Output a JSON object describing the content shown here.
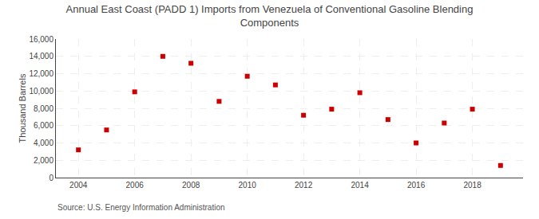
{
  "chart_data": {
    "type": "scatter",
    "title": "Annual East Coast (PADD 1) Imports from Venezuela of Conventional Gasoline Blending\nComponents",
    "ylabel": "Thousand Barrels",
    "annotations": [
      "Source: U.S. Energy Information Administration"
    ],
    "x": [
      2004,
      2005,
      2006,
      2007,
      2008,
      2009,
      2010,
      2011,
      2012,
      2013,
      2014,
      2015,
      2016,
      2017,
      2018,
      2019
    ],
    "values": [
      3200,
      5500,
      9900,
      14000,
      13200,
      8800,
      11700,
      10700,
      7200,
      7900,
      9800,
      6700,
      4000,
      6300,
      7900,
      1400
    ],
    "color": "#cc0000",
    "marker": "square",
    "xlim": [
      2003.2,
      2019.8
    ],
    "xticks": [
      2004,
      2006,
      2008,
      2010,
      2012,
      2014,
      2016,
      2018
    ],
    "ylim": [
      0,
      16000
    ],
    "yticks": [
      0,
      {
        "value": 2000,
        "label": "2,000"
      },
      {
        "value": 4000,
        "label": "4,000"
      },
      {
        "value": 6000,
        "label": "6,000"
      },
      {
        "value": 8000,
        "label": "8,000"
      },
      {
        "value": 10000,
        "label": "10,000"
      },
      {
        "value": 12000,
        "label": "12,000"
      },
      {
        "value": 14000,
        "label": "14,000"
      },
      {
        "value": 16000,
        "label": "16,000"
      }
    ],
    "grid": true
  }
}
